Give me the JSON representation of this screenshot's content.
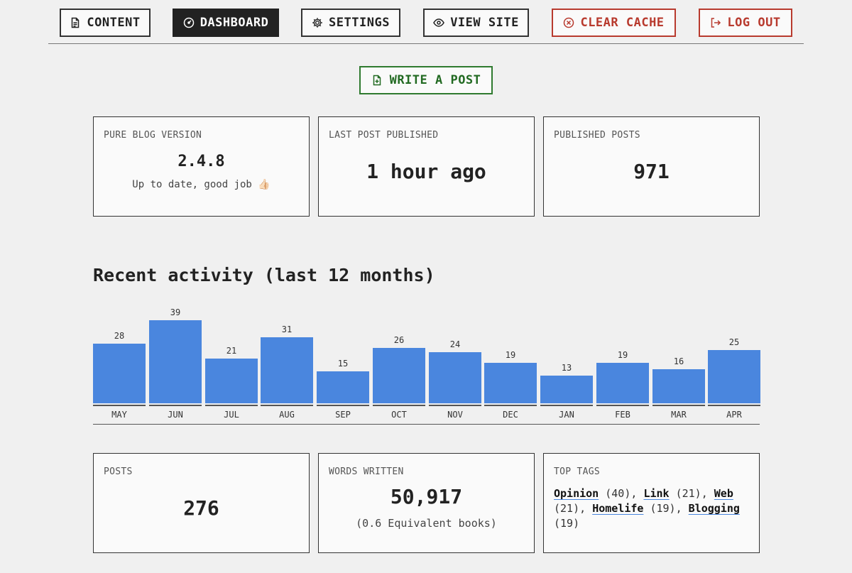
{
  "nav": {
    "content": "CONTENT",
    "dashboard": "DASHBOARD",
    "settings": "SETTINGS",
    "view_site": "VIEW SITE",
    "clear_cache": "CLEAR CACHE",
    "log_out": "LOG OUT"
  },
  "write_post": "WRITE A POST",
  "stats_top": {
    "version": {
      "label": "PURE BLOG VERSION",
      "value": "2.4.8",
      "note": "Up to date, good job 👍🏻"
    },
    "last_post": {
      "label": "LAST POST PUBLISHED",
      "value": "1 hour ago"
    },
    "published": {
      "label": "PUBLISHED POSTS",
      "value": "971"
    }
  },
  "activity_title": "Recent activity (last 12 months)",
  "chart_data": {
    "type": "bar",
    "categories": [
      "MAY",
      "JUN",
      "JUL",
      "AUG",
      "SEP",
      "OCT",
      "NOV",
      "DEC",
      "JAN",
      "FEB",
      "MAR",
      "APR"
    ],
    "values": [
      28,
      39,
      21,
      31,
      15,
      26,
      24,
      19,
      13,
      19,
      16,
      25
    ],
    "color": "#4a86de"
  },
  "stats_bottom": {
    "posts": {
      "label": "POSTS",
      "value": "276"
    },
    "words": {
      "label": "WORDS WRITTEN",
      "value": "50,917",
      "note": "(0.6 Equivalent books)"
    },
    "tags": {
      "label": "TOP TAGS",
      "items": [
        {
          "name": "Opinion",
          "count": "(40)"
        },
        {
          "name": "Link",
          "count": "(21)"
        },
        {
          "name": "Web",
          "count": "(21)"
        },
        {
          "name": "Homelife",
          "count": "(19)"
        },
        {
          "name": "Blogging",
          "count": "(19)"
        }
      ]
    }
  }
}
